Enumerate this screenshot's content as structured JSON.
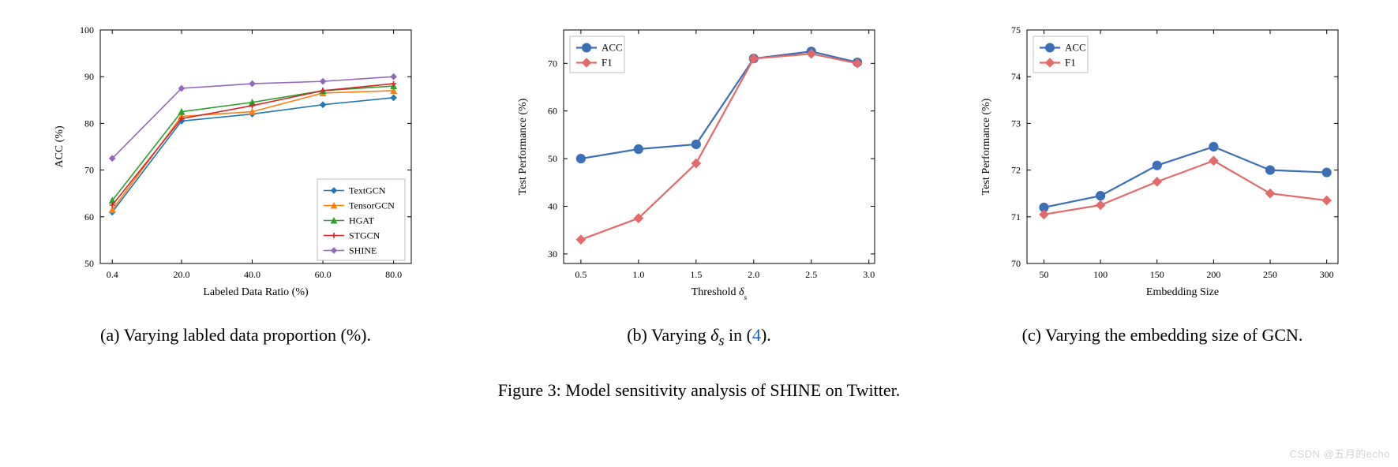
{
  "main_caption": "Figure 3: Model sensitivity analysis of SHINE on Twitter.",
  "watermark": "CSDN @五月的echo",
  "chart_a": {
    "type": "line",
    "subcaption_prefix": "(a) ",
    "subcaption_text": "Varying labled data proportion (%).",
    "xlabel": "Labeled Data Ratio (%)",
    "ylabel": "ACC (%)",
    "label_fontsize": 14,
    "tick_fontsize": 12,
    "xlim": [
      -3,
      85
    ],
    "ylim": [
      50,
      100
    ],
    "xticks": [
      0.4,
      20.0,
      40.0,
      60.0,
      80.0
    ],
    "xtick_labels": [
      "0.4",
      "20.0",
      "40.0",
      "60.0",
      "80.0"
    ],
    "yticks": [
      50,
      60,
      70,
      80,
      90,
      100
    ],
    "ytick_labels": [
      "50",
      "60",
      "70",
      "80",
      "90",
      "100"
    ],
    "legend_pos": "lower-right",
    "legend_fontsize": 12,
    "background_color": "#ffffff",
    "axis_color": "#000000",
    "line_width": 1.6,
    "marker_size": 3.5,
    "series": [
      {
        "name": "TextGCN",
        "marker": "diamond",
        "color": "#1f77b4",
        "x": [
          0.4,
          20,
          40,
          60,
          80
        ],
        "y": [
          61.0,
          80.5,
          82.0,
          84.0,
          85.5
        ]
      },
      {
        "name": "TensorGCN",
        "marker": "triangle",
        "color": "#ff7f0e",
        "x": [
          0.4,
          20,
          40,
          60,
          80
        ],
        "y": [
          61.5,
          81.5,
          82.5,
          86.5,
          87.0
        ]
      },
      {
        "name": "HGAT",
        "marker": "triangle",
        "color": "#2ca02c",
        "x": [
          0.4,
          20,
          40,
          60,
          80
        ],
        "y": [
          63.5,
          82.5,
          84.5,
          87.0,
          88.0
        ]
      },
      {
        "name": "STGCN",
        "marker": "plus",
        "color": "#d62728",
        "x": [
          0.4,
          20,
          40,
          60,
          80
        ],
        "y": [
          62.5,
          81.0,
          83.8,
          87.0,
          88.5
        ]
      },
      {
        "name": "SHINE",
        "marker": "diamond",
        "color": "#9467bd",
        "x": [
          0.4,
          20,
          40,
          60,
          80
        ],
        "y": [
          72.5,
          87.5,
          88.5,
          89.0,
          90.0
        ]
      }
    ]
  },
  "chart_b": {
    "type": "line",
    "subcaption_prefix": "(b) ",
    "subcaption_text_1": "Varying ",
    "subcaption_sym": "δ",
    "subcaption_sub": "s",
    "subcaption_text_2": " in (",
    "subcaption_ref": "4",
    "subcaption_text_3": ").",
    "xlabel_text": "Threshold ",
    "xlabel_sym": "δ",
    "xlabel_sub": "s",
    "ylabel": "Test Performance (%)",
    "label_fontsize": 14,
    "tick_fontsize": 12,
    "xlim": [
      0.35,
      3.05
    ],
    "ylim": [
      28,
      77
    ],
    "xticks": [
      0.5,
      1.0,
      1.5,
      2.0,
      2.5,
      3.0
    ],
    "xtick_labels": [
      "0.5",
      "1.0",
      "1.5",
      "2.0",
      "2.5",
      "3.0"
    ],
    "yticks": [
      30,
      40,
      50,
      60,
      70
    ],
    "ytick_labels": [
      "30",
      "40",
      "50",
      "60",
      "70"
    ],
    "legend_pos": "upper-left",
    "legend_fontsize": 13,
    "background_color": "#ffffff",
    "axis_color": "#000000",
    "line_width": 2.2,
    "marker_size": 5.5,
    "series": [
      {
        "name": "ACC",
        "marker": "circle",
        "color": "#3b6fb6",
        "edgecolor": "#3b6fb6",
        "x": [
          0.5,
          1.0,
          1.5,
          2.0,
          2.5,
          2.9
        ],
        "y": [
          50,
          52,
          53,
          71,
          72.5,
          70.2
        ]
      },
      {
        "name": "F1",
        "marker": "diamond",
        "color": "#e36a6a",
        "edgecolor": "#e36a6a",
        "x": [
          0.5,
          1.0,
          1.5,
          2.0,
          2.5,
          2.9
        ],
        "y": [
          33,
          37.5,
          49,
          71,
          72,
          70
        ]
      }
    ]
  },
  "chart_c": {
    "type": "line",
    "subcaption_prefix": "(c) ",
    "subcaption_text": "Varying the embedding size of GCN.",
    "xlabel": "Embedding Size",
    "ylabel": "Test Performance (%)",
    "label_fontsize": 14,
    "tick_fontsize": 12,
    "xlim": [
      35,
      310
    ],
    "ylim": [
      70,
      75
    ],
    "xticks": [
      50,
      100,
      150,
      200,
      250,
      300
    ],
    "xtick_labels": [
      "50",
      "100",
      "150",
      "200",
      "250",
      "300"
    ],
    "yticks": [
      70,
      71,
      72,
      73,
      74,
      75
    ],
    "ytick_labels": [
      "70",
      "71",
      "72",
      "73",
      "74",
      "75"
    ],
    "legend_pos": "upper-left",
    "legend_fontsize": 13,
    "background_color": "#ffffff",
    "axis_color": "#000000",
    "line_width": 2.2,
    "marker_size": 5.5,
    "series": [
      {
        "name": "ACC",
        "marker": "circle",
        "color": "#3b6fb6",
        "edgecolor": "#3b6fb6",
        "x": [
          50,
          100,
          150,
          200,
          250,
          300
        ],
        "y": [
          71.2,
          71.45,
          72.1,
          72.5,
          72.0,
          71.95
        ]
      },
      {
        "name": "F1",
        "marker": "diamond",
        "color": "#e36a6a",
        "edgecolor": "#e36a6a",
        "x": [
          50,
          100,
          150,
          200,
          250,
          300
        ],
        "y": [
          71.05,
          71.25,
          71.75,
          72.2,
          71.5,
          71.35
        ]
      }
    ]
  }
}
